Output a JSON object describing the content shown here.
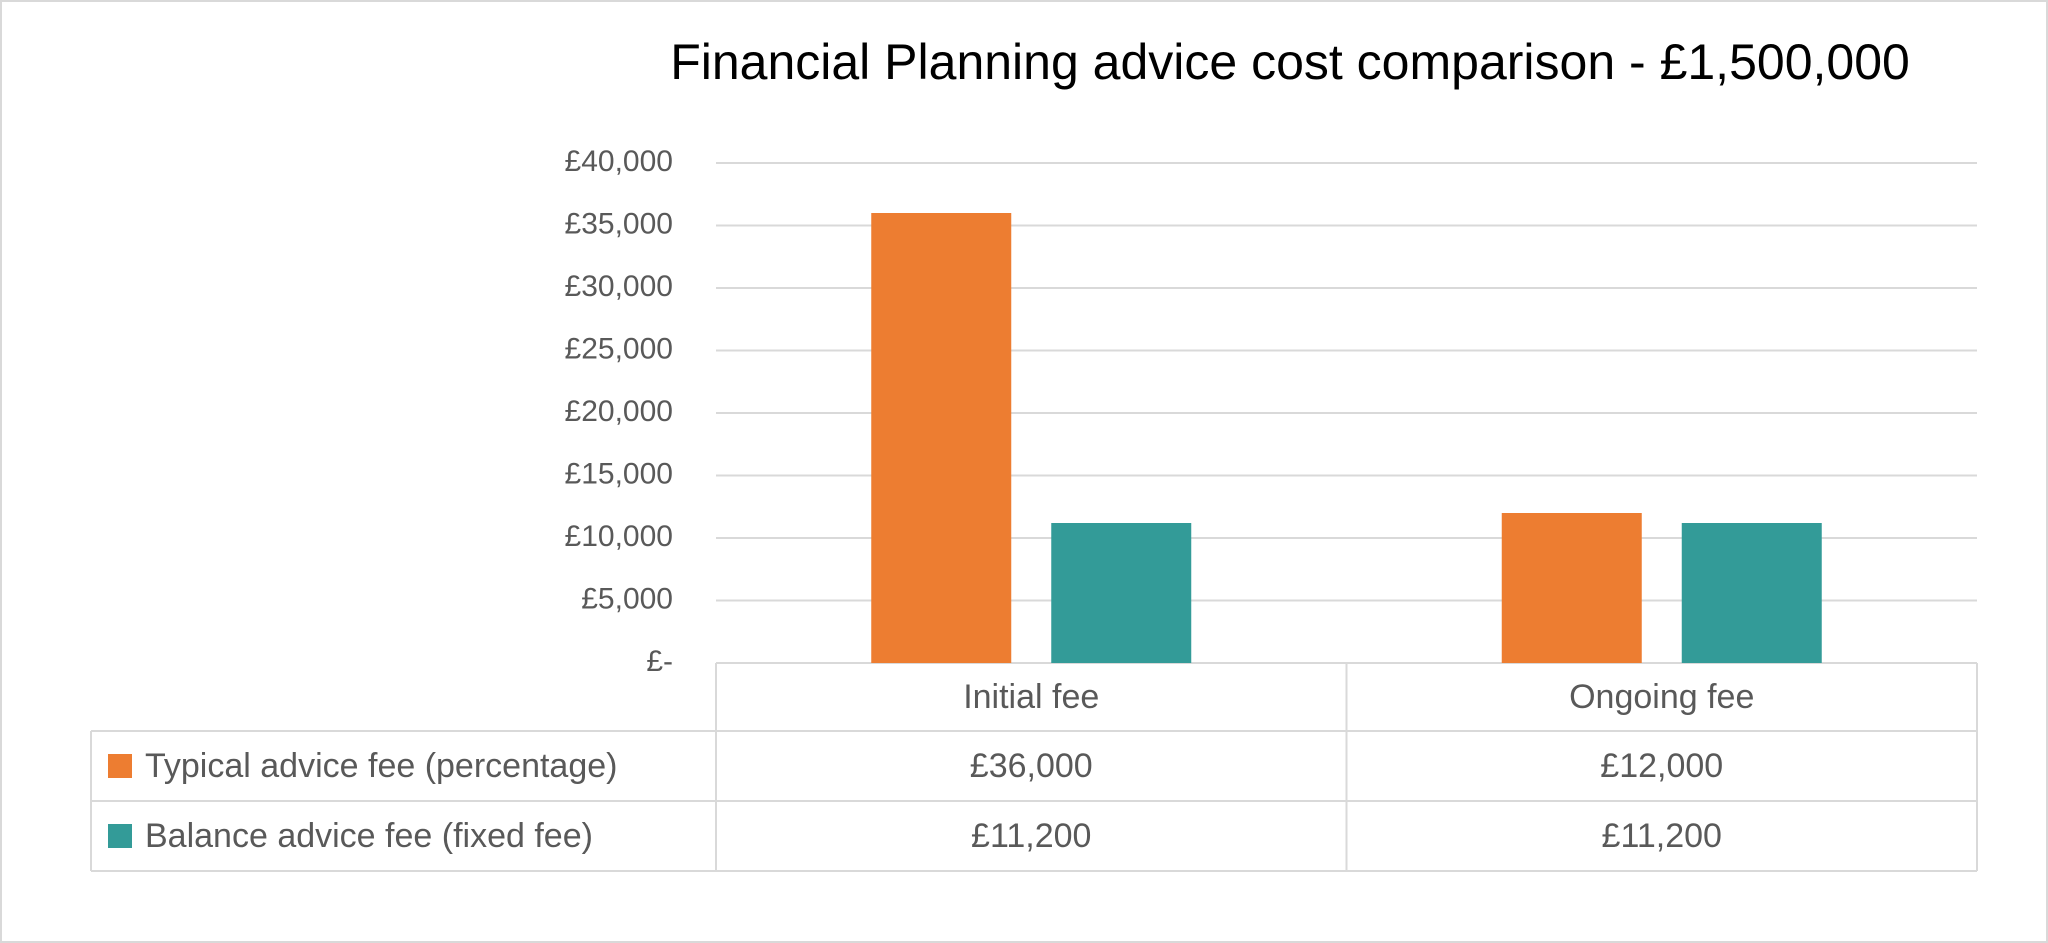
{
  "chart_data": {
    "type": "bar",
    "title": "Financial Planning advice cost comparison - £1,500,000",
    "categories": [
      "Initial fee",
      "Ongoing fee"
    ],
    "series": [
      {
        "name": "Typical advice fee (percentage)",
        "color": "#ed7d31",
        "values": [
          36000,
          12000
        ],
        "value_labels": [
          "£36,000",
          "£12,000"
        ]
      },
      {
        "name": "Balance advice fee (fixed fee)",
        "color": "#339b98",
        "values": [
          11200,
          11200
        ],
        "value_labels": [
          "£11,200",
          "£11,200"
        ]
      }
    ],
    "ylim": [
      0,
      40000
    ],
    "yticks": [
      {
        "value": 0,
        "label": "£-"
      },
      {
        "value": 5000,
        "label": "£5,000"
      },
      {
        "value": 10000,
        "label": "£10,000"
      },
      {
        "value": 15000,
        "label": "£15,000"
      },
      {
        "value": 20000,
        "label": "£20,000"
      },
      {
        "value": 25000,
        "label": "£25,000"
      },
      {
        "value": 30000,
        "label": "£30,000"
      },
      {
        "value": 35000,
        "label": "£35,000"
      },
      {
        "value": 40000,
        "label": "£40,000"
      }
    ],
    "grid": true
  }
}
